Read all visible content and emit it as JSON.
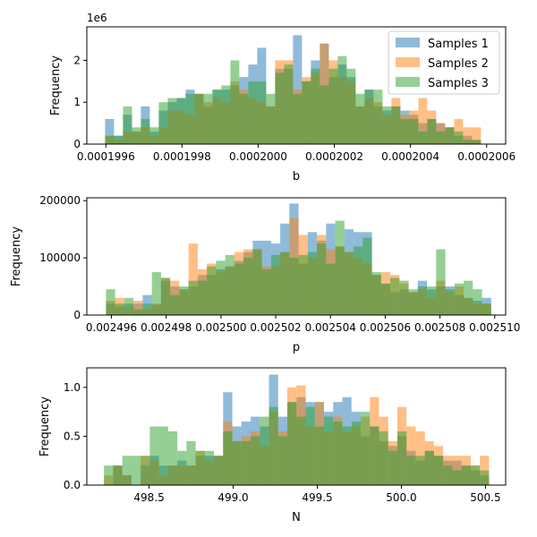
{
  "legend": {
    "placement": "top-right",
    "entries": [
      {
        "label": "Samples 1",
        "color": "#1f77b4"
      },
      {
        "label": "Samples 2",
        "color": "#ff7f0e"
      },
      {
        "label": "Samples 3",
        "color": "#2ca02c"
      }
    ]
  },
  "chart_data": [
    {
      "type": "bar",
      "subtype": "overlaid-histogram",
      "title": "",
      "xlabel": "b",
      "ylabel": "Frequency",
      "offset_text": "1e6",
      "xlim": [
        0.00019955,
        0.00020065
      ],
      "ylim": [
        0,
        2.8
      ],
      "xticks": [
        0.0001996,
        0.0001998,
        0.0002,
        0.0002002,
        0.0002004,
        0.0002006
      ],
      "xtick_labels": [
        "0.0001996",
        "0.0001998",
        "0.0002000",
        "0.0002002",
        "0.0002004",
        "0.0002006"
      ],
      "yticks": [
        0,
        1,
        2
      ],
      "ytick_labels": [
        "0",
        "1",
        "2"
      ],
      "bins": {
        "start": 0.000199598,
        "width": 2.35e-08,
        "count": 43
      },
      "series": [
        {
          "name": "Samples 1",
          "values": [
            0.6,
            0.2,
            0.7,
            0.3,
            0.9,
            0.3,
            0.8,
            1.0,
            1.1,
            1.3,
            1.2,
            0.9,
            1.3,
            1.3,
            1.4,
            1.6,
            1.9,
            2.3,
            0.9,
            1.8,
            1.8,
            2.6,
            1.5,
            2.0,
            2.4,
            1.6,
            1.9,
            1.6,
            0.9,
            1.3,
            0.9,
            0.8,
            0.9,
            0.8,
            0.7,
            0.5,
            0.6,
            0.5,
            0.4,
            0.2,
            0.2,
            0.1,
            0
          ]
        },
        {
          "name": "Samples 2",
          "values": [
            0.2,
            0.1,
            0.3,
            0.3,
            0.4,
            0.2,
            0.4,
            0.8,
            0.8,
            0.7,
            1.2,
            1.0,
            1.1,
            1.0,
            1.5,
            1.3,
            1.1,
            1.0,
            0.9,
            2.0,
            2.0,
            1.3,
            1.6,
            1.7,
            2.4,
            2.0,
            1.6,
            1.5,
            0.9,
            1.1,
            1.0,
            0.7,
            1.1,
            0.7,
            0.8,
            1.1,
            0.8,
            0.5,
            0.4,
            0.6,
            0.4,
            0.4,
            0
          ]
        },
        {
          "name": "Samples 3",
          "values": [
            0.2,
            0.2,
            0.9,
            0.4,
            0.6,
            0.4,
            1.0,
            1.1,
            1.1,
            1.2,
            1.2,
            1.2,
            1.3,
            1.4,
            2.0,
            1.2,
            1.5,
            1.5,
            1.2,
            1.7,
            1.9,
            1.2,
            1.5,
            1.8,
            1.4,
            1.8,
            2.1,
            1.8,
            1.2,
            1.3,
            1.3,
            0.9,
            0.9,
            0.6,
            0.6,
            0.3,
            0.6,
            0.3,
            0.4,
            0.3,
            0.1,
            0.1,
            0
          ]
        }
      ]
    },
    {
      "type": "bar",
      "subtype": "overlaid-histogram",
      "title": "",
      "xlabel": "p",
      "ylabel": "Frequency",
      "xlim": [
        0.0024951,
        0.0025104
      ],
      "ylim": [
        0,
        205000
      ],
      "xticks": [
        0.002496,
        0.002498,
        0.0025,
        0.002502,
        0.002504,
        0.002506,
        0.002508,
        0.00251
      ],
      "xtick_labels": [
        "0.002496",
        "0.002498",
        "0.002500",
        "0.002502",
        "0.002504",
        "0.002506",
        "0.002508",
        "0.002510"
      ],
      "yticks": [
        0,
        100000,
        200000
      ],
      "ytick_labels": [
        "0",
        "100000",
        "200000"
      ],
      "bins": {
        "start": 0.0024958,
        "width": 3.35e-07,
        "count": 43
      },
      "series": [
        {
          "name": "Samples 1",
          "values": [
            20000,
            15000,
            20000,
            20000,
            35000,
            18000,
            60000,
            50000,
            45000,
            50000,
            70000,
            70000,
            80000,
            85000,
            95000,
            110000,
            130000,
            130000,
            125000,
            160000,
            195000,
            90000,
            145000,
            130000,
            160000,
            120000,
            150000,
            145000,
            145000,
            70000,
            55000,
            40000,
            45000,
            40000,
            60000,
            45000,
            50000,
            50000,
            35000,
            30000,
            25000,
            30000,
            0
          ]
        },
        {
          "name": "Samples 2",
          "values": [
            25000,
            30000,
            15000,
            25000,
            10000,
            20000,
            65000,
            60000,
            45000,
            125000,
            80000,
            90000,
            75000,
            85000,
            110000,
            115000,
            115000,
            85000,
            85000,
            110000,
            170000,
            140000,
            100000,
            140000,
            115000,
            120000,
            110000,
            100000,
            90000,
            70000,
            75000,
            70000,
            55000,
            40000,
            45000,
            30000,
            60000,
            40000,
            50000,
            30000,
            20000,
            20000,
            0
          ]
        },
        {
          "name": "Samples 3",
          "values": [
            45000,
            20000,
            30000,
            10000,
            20000,
            75000,
            65000,
            35000,
            50000,
            60000,
            60000,
            85000,
            95000,
            105000,
            90000,
            100000,
            115000,
            80000,
            105000,
            110000,
            100000,
            105000,
            110000,
            125000,
            90000,
            165000,
            110000,
            120000,
            135000,
            75000,
            55000,
            65000,
            60000,
            45000,
            50000,
            50000,
            115000,
            45000,
            55000,
            60000,
            45000,
            20000,
            0
          ]
        }
      ]
    },
    {
      "type": "bar",
      "subtype": "overlaid-histogram",
      "title": "",
      "xlabel": "N",
      "ylabel": "Frequency",
      "xlim": [
        498.13,
        500.62
      ],
      "ylim": [
        0,
        1.2
      ],
      "xticks": [
        498.5,
        499.0,
        499.5,
        500.0,
        500.5
      ],
      "xtick_labels": [
        "498.5",
        "499.0",
        "499.5",
        "500.0",
        "500.5"
      ],
      "yticks": [
        0.0,
        0.5,
        1.0
      ],
      "ytick_labels": [
        "0.0",
        "0.5",
        "1.0"
      ],
      "bins": {
        "start": 498.232,
        "width": 0.0545,
        "count": 43
      },
      "series": [
        {
          "name": "Samples 1",
          "values": [
            0.0,
            0.2,
            0.1,
            0.0,
            0.2,
            0.3,
            0.2,
            0.2,
            0.25,
            0.2,
            0.3,
            0.3,
            0.3,
            0.95,
            0.6,
            0.65,
            0.7,
            0.6,
            1.13,
            0.7,
            0.85,
            0.9,
            0.85,
            0.85,
            0.75,
            0.85,
            0.9,
            0.75,
            0.5,
            0.6,
            0.45,
            0.4,
            0.5,
            0.35,
            0.25,
            0.35,
            0.3,
            0.25,
            0.25,
            0.2,
            0.15,
            0.1,
            0
          ]
        },
        {
          "name": "Samples 2",
          "values": [
            0.1,
            0.2,
            0.1,
            0.0,
            0.3,
            0.25,
            0.1,
            0.2,
            0.2,
            0.2,
            0.35,
            0.25,
            0.3,
            0.65,
            0.45,
            0.5,
            0.55,
            0.4,
            0.75,
            0.55,
            1.0,
            1.02,
            0.6,
            0.85,
            0.55,
            0.7,
            0.55,
            0.6,
            0.7,
            0.9,
            0.7,
            0.45,
            0.8,
            0.6,
            0.55,
            0.45,
            0.4,
            0.3,
            0.3,
            0.3,
            0.2,
            0.3,
            0
          ]
        },
        {
          "name": "Samples 3",
          "values": [
            0.2,
            0.2,
            0.3,
            0.3,
            0.3,
            0.6,
            0.6,
            0.55,
            0.35,
            0.45,
            0.35,
            0.35,
            0.3,
            0.55,
            0.45,
            0.45,
            0.5,
            0.7,
            0.8,
            0.5,
            0.85,
            0.7,
            0.8,
            0.6,
            0.7,
            0.65,
            0.6,
            0.65,
            0.75,
            0.6,
            0.55,
            0.35,
            0.55,
            0.3,
            0.3,
            0.35,
            0.3,
            0.2,
            0.15,
            0.2,
            0.2,
            0.15,
            0
          ]
        }
      ]
    }
  ]
}
